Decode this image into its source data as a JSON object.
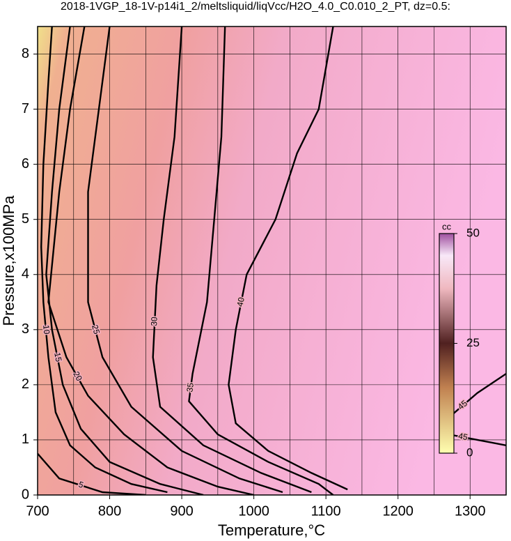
{
  "chart_data": {
    "type": "contour",
    "title": "2018-1VGP_18-1V-p14i1_2/meltsliquid/liqVcc/H2O_4.0_C0.010_2_PT, dz=0.5:",
    "x_label": "Temperature,°C",
    "y_label": "Pressure,x100MPa",
    "xlim": [
      700,
      1350
    ],
    "ylim": [
      0,
      8.5
    ],
    "xticks": [
      700,
      800,
      900,
      1000,
      1100,
      1200,
      1300
    ],
    "minor_xticks": [
      750,
      850,
      950,
      1050,
      1150,
      1250
    ],
    "yticks": [
      0,
      1,
      2,
      3,
      4,
      5,
      6,
      7,
      8
    ],
    "grid": true,
    "contours": [
      {
        "level": 5,
        "x": [
          700,
          730,
          790,
          850
        ],
        "y": [
          0.75,
          0.3,
          0.05,
          0
        ]
      },
      {
        "level": 10,
        "x": [
          720,
          715,
          708,
          705,
          708,
          715,
          725,
          745,
          780,
          830,
          880
        ],
        "y": [
          8.5,
          7.5,
          6,
          4.5,
          3.5,
          2.5,
          1.5,
          0.9,
          0.5,
          0.2,
          0.05
        ]
      },
      {
        "level": 15,
        "x": [
          745,
          730,
          720,
          712,
          720,
          735,
          760,
          800,
          870,
          930
        ],
        "y": [
          8.5,
          7,
          5.5,
          4,
          3,
          2,
          1.2,
          0.6,
          0.2,
          0
        ]
      },
      {
        "level": 20,
        "x": [
          765,
          745,
          730,
          715,
          740,
          770,
          820,
          880,
          950,
          1000
        ],
        "y": [
          8.5,
          7,
          5.5,
          3.5,
          2.5,
          1.8,
          1.1,
          0.5,
          0.15,
          0
        ]
      },
      {
        "level": 25,
        "x": [
          800,
          785,
          770,
          770,
          790,
          830,
          900,
          980,
          1040
        ],
        "y": [
          8.5,
          7,
          5.5,
          3.5,
          2.5,
          1.6,
          0.8,
          0.3,
          0.05
        ]
      },
      {
        "level": 30,
        "x": [
          900,
          890,
          875,
          865,
          860,
          870,
          930,
          1010,
          1080
        ],
        "y": [
          8.5,
          6.5,
          5,
          3.8,
          2.5,
          1.6,
          0.9,
          0.4,
          0.05
        ]
      },
      {
        "level": 35,
        "x": [
          960,
          955,
          945,
          935,
          915,
          910,
          950,
          1020,
          1090,
          1110
        ],
        "y": [
          8.5,
          6.5,
          5,
          3.5,
          2.2,
          1.7,
          1.1,
          0.6,
          0.2,
          0
        ]
      },
      {
        "level": 40,
        "x": [
          1110,
          1090,
          1060,
          1030,
          990,
          975,
          965,
          975,
          1020,
          1080,
          1130
        ],
        "y": [
          8.5,
          7,
          6.2,
          5,
          4,
          3,
          2,
          1.3,
          0.8,
          0.4,
          0.1
        ]
      },
      {
        "level": 45,
        "x": [
          1270,
          1310,
          1350
        ],
        "y": [
          1.4,
          1.85,
          2.2
        ]
      },
      {
        "level": 45,
        "x": [
          1270,
          1310,
          1350
        ],
        "y": [
          1.1,
          1.0,
          0.9
        ]
      }
    ],
    "colorbar": {
      "label": "cc",
      "lim": [
        0,
        50
      ],
      "ticks": [
        0,
        25,
        50
      ]
    }
  }
}
